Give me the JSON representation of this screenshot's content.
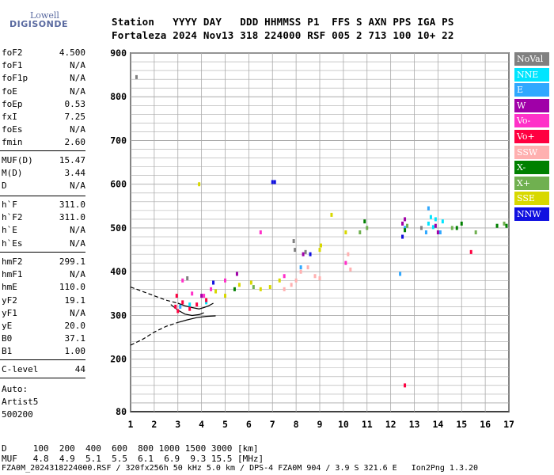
{
  "logo": {
    "line1": "Lowell",
    "line2": "DIGISONDE"
  },
  "header": {
    "line1": "Station   YYYY DAY   DDD HHMMSS P1  FFS S AXN PPS IGA PS",
    "line2": "Fortaleza 2024 Nov13 318 224000 RSF 005 2 713 100 10+ 22"
  },
  "params_group1": [
    {
      "name": "foF2",
      "value": "4.500"
    },
    {
      "name": "foF1",
      "value": "N/A"
    },
    {
      "name": "foF1p",
      "value": "N/A"
    },
    {
      "name": "foE",
      "value": "N/A"
    },
    {
      "name": "foEp",
      "value": "0.53"
    },
    {
      "name": "fxI",
      "value": "7.25"
    },
    {
      "name": "foEs",
      "value": "N/A"
    },
    {
      "name": "fmin",
      "value": "2.60"
    }
  ],
  "params_group2": [
    {
      "name": "MUF(D)",
      "value": "15.47"
    },
    {
      "name": "M(D)",
      "value": "3.44"
    },
    {
      "name": "D",
      "value": "N/A"
    }
  ],
  "params_group3": [
    {
      "name": "h`F",
      "value": "311.0"
    },
    {
      "name": "h`F2",
      "value": "311.0"
    },
    {
      "name": "h`E",
      "value": "N/A"
    },
    {
      "name": "h`Es",
      "value": "N/A"
    }
  ],
  "params_group4": [
    {
      "name": "hmF2",
      "value": "299.1"
    },
    {
      "name": "hmF1",
      "value": "N/A"
    },
    {
      "name": "hmE",
      "value": "110.0"
    },
    {
      "name": "yF2",
      "value": "19.1"
    },
    {
      "name": "yF1",
      "value": "N/A"
    },
    {
      "name": "yE",
      "value": "20.0"
    },
    {
      "name": "B0",
      "value": "37.1"
    },
    {
      "name": "B1",
      "value": "1.00"
    }
  ],
  "params_group5": [
    {
      "name": "C-level",
      "value": "44"
    }
  ],
  "auto": {
    "line1": "Auto:",
    "line2": "Artist5",
    "line3": "500200"
  },
  "legend": [
    {
      "label": "NoVal",
      "color": "#808080"
    },
    {
      "label": "NNE",
      "color": "#00e5ff"
    },
    {
      "label": "E",
      "color": "#30a8ff"
    },
    {
      "label": "W",
      "color": "#a000a8"
    },
    {
      "label": "Vo-",
      "color": "#ff30c8"
    },
    {
      "label": "Vo+",
      "color": "#ff0040"
    },
    {
      "label": "SSW",
      "color": "#ffb0b0"
    },
    {
      "label": "X-",
      "color": "#008000"
    },
    {
      "label": "X+",
      "color": "#70b050"
    },
    {
      "label": "SSE",
      "color": "#d8d800"
    },
    {
      "label": "NNW",
      "color": "#1010e0"
    }
  ],
  "footer": {
    "d_row": "D     100  200  400  600  800 1000 1500 3000 [km]",
    "muf_row": "MUF   4.8  4.9  5.1  5.5  6.1  6.9  9.3 15.5 [MHz]",
    "file_row": "FZA0M_2024318224000.RSF / 320fx256h 50 kHz 5.0 km / DPS-4 FZA0M 904 / 3.9 S 321.6 E   Ion2Png 1.3.20"
  },
  "chart_data": {
    "type": "scatter",
    "xlim": [
      1,
      17
    ],
    "ylim": [
      80,
      900
    ],
    "xticks": [
      1,
      2,
      3,
      4,
      5,
      6,
      7,
      8,
      9,
      10,
      11,
      12,
      13,
      14,
      15,
      16,
      17
    ],
    "yticks": [
      80,
      200,
      300,
      400,
      500,
      600,
      700,
      800,
      900
    ],
    "grid": true,
    "series": [
      {
        "name": "NoVal",
        "points": [
          [
            1.25,
            845
          ],
          [
            7.9,
            470
          ],
          [
            7.95,
            450
          ],
          [
            12.5,
            480
          ],
          [
            13.3,
            500
          ],
          [
            3.4,
            385
          ],
          [
            8.4,
            445
          ]
        ]
      },
      {
        "name": "NNE",
        "points": [
          [
            13.7,
            525
          ],
          [
            13.9,
            520
          ],
          [
            14.2,
            515
          ],
          [
            13.6,
            510
          ],
          [
            13.8,
            502
          ],
          [
            3.5,
            325
          ],
          [
            4.2,
            330
          ]
        ]
      },
      {
        "name": "E",
        "points": [
          [
            13.6,
            545
          ],
          [
            14.1,
            490
          ],
          [
            12.4,
            395
          ],
          [
            12.6,
            500
          ],
          [
            13.5,
            490
          ],
          [
            3.1,
            320
          ],
          [
            8.2,
            410
          ]
        ]
      },
      {
        "name": "W",
        "points": [
          [
            12.5,
            510
          ],
          [
            12.6,
            520
          ],
          [
            13.9,
            505
          ],
          [
            14.0,
            490
          ],
          [
            4.0,
            345
          ],
          [
            5.5,
            395
          ],
          [
            8.3,
            440
          ]
        ]
      },
      {
        "name": "Vo-",
        "points": [
          [
            6.5,
            490
          ],
          [
            3.2,
            380
          ],
          [
            3.6,
            350
          ],
          [
            4.1,
            345
          ],
          [
            4.4,
            360
          ],
          [
            5.0,
            380
          ],
          [
            7.5,
            390
          ],
          [
            10.1,
            420
          ]
        ]
      },
      {
        "name": "Vo+",
        "points": [
          [
            12.6,
            140
          ],
          [
            15.4,
            445
          ],
          [
            2.9,
            320
          ],
          [
            3.0,
            310
          ],
          [
            3.2,
            330
          ],
          [
            3.5,
            315
          ],
          [
            3.8,
            325
          ],
          [
            4.2,
            335
          ],
          [
            2.95,
            345
          ]
        ]
      },
      {
        "name": "SSW",
        "points": [
          [
            7.8,
            370
          ],
          [
            8.0,
            380
          ],
          [
            8.2,
            400
          ],
          [
            8.5,
            410
          ],
          [
            8.8,
            390
          ],
          [
            9.0,
            385
          ],
          [
            10.2,
            440
          ],
          [
            10.3,
            405
          ],
          [
            7.5,
            360
          ]
        ]
      },
      {
        "name": "X-",
        "points": [
          [
            10.9,
            515
          ],
          [
            12.6,
            495
          ],
          [
            14.8,
            500
          ],
          [
            15.0,
            510
          ],
          [
            16.5,
            505
          ],
          [
            16.9,
            505
          ],
          [
            5.4,
            360
          ]
        ]
      },
      {
        "name": "X+",
        "points": [
          [
            10.7,
            490
          ],
          [
            11.0,
            500
          ],
          [
            12.7,
            505
          ],
          [
            14.6,
            500
          ],
          [
            15.6,
            490
          ],
          [
            16.8,
            510
          ],
          [
            6.2,
            365
          ]
        ]
      },
      {
        "name": "SSE",
        "points": [
          [
            3.9,
            600
          ],
          [
            9.5,
            530
          ],
          [
            10.1,
            490
          ],
          [
            4.6,
            355
          ],
          [
            5.0,
            345
          ],
          [
            5.6,
            370
          ],
          [
            6.1,
            375
          ],
          [
            6.5,
            360
          ],
          [
            6.9,
            365
          ],
          [
            7.3,
            380
          ],
          [
            9.0,
            450
          ],
          [
            9.05,
            460
          ]
        ]
      },
      {
        "name": "NNW",
        "points": [
          [
            7.0,
            605
          ],
          [
            7.1,
            605
          ],
          [
            4.5,
            375
          ],
          [
            8.6,
            440
          ],
          [
            12.5,
            480
          ]
        ]
      }
    ],
    "curves": [
      {
        "name": "",
        "style": "dashed",
        "points": [
          [
            1,
            365
          ],
          [
            1.5,
            355
          ],
          [
            2.0,
            345
          ],
          [
            2.5,
            335
          ],
          [
            3.0,
            328
          ]
        ]
      },
      {
        "name": "",
        "style": "solid",
        "points": [
          [
            3.0,
            328
          ],
          [
            3.3,
            322
          ],
          [
            3.6,
            318
          ],
          [
            3.9,
            315
          ],
          [
            4.1,
            318
          ],
          [
            4.3,
            322
          ],
          [
            4.5,
            328
          ]
        ]
      },
      {
        "name": "",
        "style": "dashed",
        "points": [
          [
            1,
            232
          ],
          [
            1.5,
            245
          ],
          [
            2.0,
            262
          ],
          [
            2.5,
            275
          ],
          [
            3.0,
            284
          ]
        ]
      },
      {
        "name": "",
        "style": "solid",
        "points": [
          [
            3.0,
            284
          ],
          [
            3.4,
            290
          ],
          [
            3.8,
            295
          ],
          [
            4.2,
            298
          ],
          [
            4.6,
            299
          ]
        ]
      },
      {
        "name": "",
        "style": "solid",
        "points": [
          [
            2.7,
            325
          ],
          [
            3.0,
            312
          ],
          [
            3.3,
            303
          ],
          [
            3.6,
            300
          ],
          [
            3.9,
            302
          ],
          [
            4.1,
            306
          ]
        ]
      }
    ]
  }
}
